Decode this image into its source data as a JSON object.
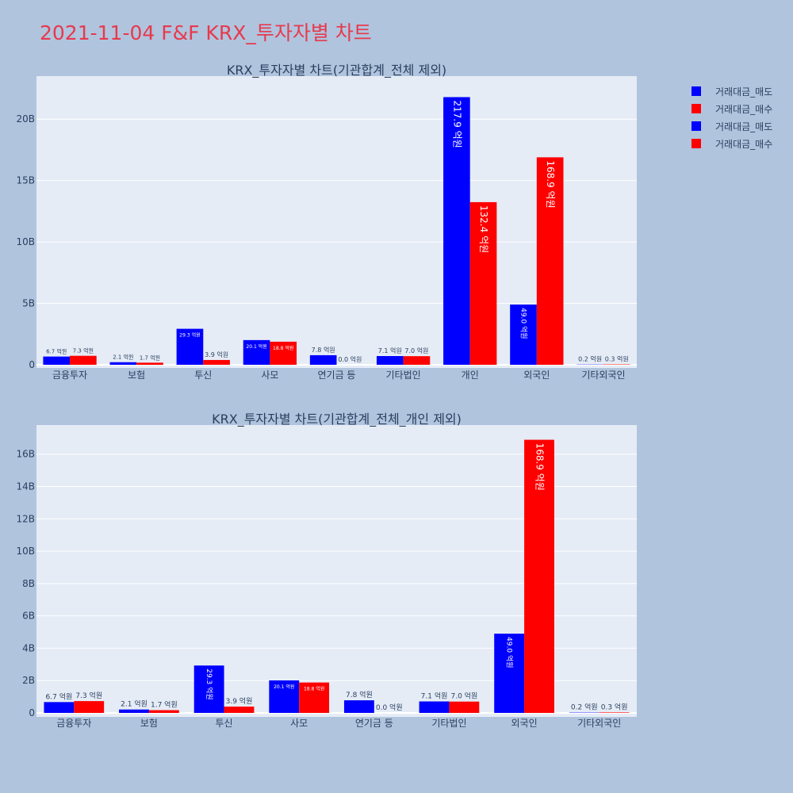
{
  "page_title": "2021-11-04 F&F KRX_투자자별 차트",
  "colors": {
    "sell": "#0000ff",
    "buy": "#ff0000",
    "plot_bg": "#e5ecf6",
    "paper_bg": "#b0c4de",
    "title": "#e8394d",
    "axis_text": "#2a3f5f"
  },
  "legend": [
    {
      "label": "거래대금_매도",
      "color": "#0000ff"
    },
    {
      "label": "거래대금_매수",
      "color": "#ff0000"
    },
    {
      "label": "거래대금_매도",
      "color": "#0000ff"
    },
    {
      "label": "거래대금_매수",
      "color": "#ff0000"
    }
  ],
  "chart_data": [
    {
      "type": "bar",
      "title": "KRX_투자자별 차트(기관합계_전체 제외)",
      "categories": [
        "금융투자",
        "보험",
        "투신",
        "사모",
        "연기금 등",
        "기타법인",
        "개인",
        "외국인",
        "기타외국인"
      ],
      "series": [
        {
          "name": "거래대금_매도",
          "color": "#0000ff",
          "values": [
            0.67,
            0.21,
            2.93,
            2.01,
            0.78,
            0.71,
            21.79,
            4.9,
            0.02
          ],
          "labels": [
            "6.7 억원",
            "2.1 억원",
            "29.3 억원",
            "20.1 억원",
            "7.8 억원",
            "7.1 억원",
            "217.9 억원",
            "49.0 억원",
            "0.2 억원"
          ]
        },
        {
          "name": "거래대금_매수",
          "color": "#ff0000",
          "values": [
            0.73,
            0.17,
            0.39,
            1.88,
            0.0,
            0.7,
            13.24,
            16.89,
            0.03
          ],
          "labels": [
            "7.3 억원",
            "1.7 억원",
            "3.9 억원",
            "18.8 억원",
            "0.0 억원",
            "7.0 억원",
            "132.4 억원",
            "168.9 억원",
            "0.3 억원"
          ]
        }
      ],
      "ylim": [
        0,
        23.5
      ],
      "yticks": [
        0,
        5,
        10,
        15,
        20
      ],
      "ytick_labels": [
        "0",
        "5B",
        "10B",
        "15B",
        "20B"
      ],
      "grid": true
    },
    {
      "type": "bar",
      "title": "KRX_투자자별 차트(기관합계_전체_개인 제외)",
      "categories": [
        "금융투자",
        "보험",
        "투신",
        "사모",
        "연기금 등",
        "기타법인",
        "외국인",
        "기타외국인"
      ],
      "series": [
        {
          "name": "거래대금_매도",
          "color": "#0000ff",
          "values": [
            0.67,
            0.21,
            2.93,
            2.01,
            0.78,
            0.71,
            4.9,
            0.02
          ],
          "labels": [
            "6.7 억원",
            "2.1 억원",
            "29.3 억원",
            "20.1 억원",
            "7.8 억원",
            "7.1 억원",
            "49.0 억원",
            "0.2 억원"
          ]
        },
        {
          "name": "거래대금_매수",
          "color": "#ff0000",
          "values": [
            0.73,
            0.17,
            0.39,
            1.88,
            0.0,
            0.7,
            16.89,
            0.03
          ],
          "labels": [
            "7.3 억원",
            "1.7 억원",
            "3.9 억원",
            "18.8 억원",
            "0.0 억원",
            "7.0 억원",
            "168.9 억원",
            "0.3 억원"
          ]
        }
      ],
      "ylim": [
        0,
        17.8
      ],
      "yticks": [
        0,
        2,
        4,
        6,
        8,
        10,
        12,
        14,
        16
      ],
      "ytick_labels": [
        "0",
        "2B",
        "4B",
        "6B",
        "8B",
        "10B",
        "12B",
        "14B",
        "16B"
      ],
      "grid": true
    }
  ]
}
